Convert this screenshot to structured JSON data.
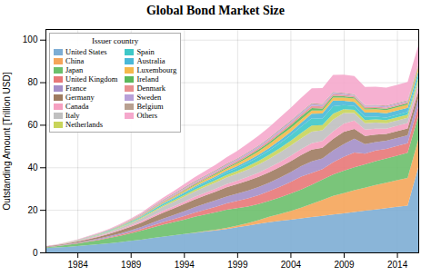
{
  "chart_data": {
    "type": "area",
    "stacked": true,
    "title": "Global Bond Market Size",
    "ylabel": "Outstanding Amount [Trillion USD]",
    "legend_title": "Issuer country",
    "legend": "upper left",
    "grid": true,
    "x": [
      1981,
      1982,
      1983,
      1984,
      1985,
      1986,
      1987,
      1988,
      1989,
      1990,
      1991,
      1992,
      1993,
      1994,
      1995,
      1996,
      1997,
      1998,
      1999,
      2000,
      2001,
      2002,
      2003,
      2004,
      2005,
      2006,
      2007,
      2008,
      2009,
      2010,
      2011,
      2012,
      2013,
      2014,
      2015,
      2016
    ],
    "xlim": [
      1981,
      2016
    ],
    "xticks": [
      1984,
      1989,
      1994,
      1999,
      2004,
      2009,
      2014
    ],
    "ylim": [
      0,
      105
    ],
    "yticks": [
      0,
      20,
      40,
      60,
      80,
      100
    ],
    "series": [
      {
        "name": "United States",
        "color": "#7dadd4",
        "values": [
          2.0,
          2.3,
          2.6,
          3.0,
          3.4,
          3.8,
          4.3,
          4.8,
          5.4,
          6.0,
          6.7,
          7.4,
          8.0,
          8.6,
          9.2,
          9.8,
          10.4,
          11.0,
          11.8,
          12.6,
          13.4,
          14.2,
          14.8,
          15.4,
          16.0,
          16.6,
          17.2,
          17.8,
          18.4,
          19.0,
          19.6,
          20.2,
          20.8,
          21.4,
          22.0,
          40.0
        ]
      },
      {
        "name": "China",
        "color": "#f5a55a",
        "values": [
          0.0,
          0.0,
          0.0,
          0.0,
          0.0,
          0.0,
          0.0,
          0.0,
          0.0,
          0.0,
          0.0,
          0.0,
          0.0,
          0.0,
          0.1,
          0.2,
          0.3,
          0.5,
          0.8,
          1.2,
          1.8,
          2.5,
          3.2,
          4.0,
          5.0,
          6.2,
          7.5,
          8.8,
          9.5,
          10.2,
          10.8,
          11.5,
          12.0,
          12.5,
          13.0,
          13.0
        ]
      },
      {
        "name": "Japan",
        "color": "#6bbf6b",
        "values": [
          0.4,
          0.6,
          0.9,
          1.2,
          1.6,
          2.0,
          2.5,
          3.0,
          3.6,
          4.2,
          4.9,
          5.6,
          6.2,
          6.8,
          7.4,
          7.8,
          8.2,
          8.6,
          8.2,
          7.8,
          7.5,
          7.5,
          7.8,
          8.2,
          8.6,
          9.0,
          9.5,
          10.0,
          10.5,
          10.8,
          11.0,
          11.2,
          11.4,
          11.6,
          11.8,
          11.0
        ]
      },
      {
        "name": "United Kingdom",
        "color": "#e87878",
        "values": [
          0.1,
          0.1,
          0.1,
          0.2,
          0.2,
          0.3,
          0.4,
          0.5,
          0.6,
          0.8,
          1.0,
          1.2,
          1.4,
          1.7,
          2.0,
          2.3,
          2.6,
          3.0,
          3.4,
          3.8,
          4.2,
          4.6,
          5.0,
          5.5,
          6.0,
          5.5,
          5.0,
          5.8,
          6.5,
          7.0,
          5.0,
          5.0,
          4.5,
          4.5,
          4.5,
          4.5
        ]
      },
      {
        "name": "France",
        "color": "#a48fc8",
        "values": [
          0.1,
          0.1,
          0.2,
          0.2,
          0.3,
          0.4,
          0.5,
          0.6,
          0.8,
          1.0,
          1.3,
          1.6,
          1.9,
          2.2,
          2.5,
          2.8,
          3.0,
          3.2,
          3.4,
          3.6,
          3.8,
          4.0,
          4.3,
          4.6,
          5.0,
          5.5,
          5.0,
          5.5,
          6.0,
          6.5,
          4.5,
          4.0,
          3.8,
          3.8,
          3.8,
          3.8
        ]
      },
      {
        "name": "Germany",
        "color": "#9e7b60",
        "values": [
          0.2,
          0.3,
          0.4,
          0.5,
          0.7,
          0.9,
          1.1,
          1.4,
          1.7,
          2.0,
          2.4,
          2.8,
          3.1,
          3.4,
          3.7,
          3.9,
          4.1,
          4.3,
          4.5,
          4.7,
          4.8,
          4.9,
          5.0,
          5.1,
          5.2,
          5.5,
          5.0,
          5.5,
          5.8,
          4.5,
          3.8,
          3.5,
          3.2,
          3.2,
          3.2,
          3.2
        ]
      },
      {
        "name": "Canada",
        "color": "#f5a0c0",
        "values": [
          0.1,
          0.1,
          0.2,
          0.2,
          0.3,
          0.3,
          0.4,
          0.5,
          0.6,
          0.7,
          0.8,
          0.9,
          1.0,
          1.1,
          1.2,
          1.3,
          1.4,
          1.5,
          1.6,
          1.8,
          2.0,
          2.2,
          2.4,
          2.6,
          2.8,
          3.0,
          3.2,
          3.5,
          3.8,
          4.0,
          3.0,
          2.8,
          2.5,
          2.5,
          2.5,
          2.5
        ]
      },
      {
        "name": "Italy",
        "color": "#c0c0c0",
        "values": [
          0.1,
          0.1,
          0.2,
          0.3,
          0.4,
          0.5,
          0.6,
          0.8,
          1.0,
          1.3,
          1.6,
          1.9,
          2.1,
          2.3,
          2.5,
          2.7,
          2.9,
          3.1,
          3.3,
          3.5,
          3.8,
          4.1,
          4.4,
          4.7,
          5.0,
          5.5,
          5.0,
          5.5,
          5.0,
          3.5,
          3.0,
          2.8,
          2.5,
          2.5,
          2.5,
          2.5
        ]
      },
      {
        "name": "Netherlands",
        "color": "#c8d45a",
        "values": [
          0.0,
          0.0,
          0.1,
          0.1,
          0.1,
          0.2,
          0.2,
          0.3,
          0.3,
          0.4,
          0.5,
          0.6,
          0.7,
          0.8,
          0.9,
          1.0,
          1.1,
          1.2,
          1.3,
          1.5,
          1.7,
          1.9,
          2.1,
          2.3,
          2.5,
          2.8,
          2.5,
          2.8,
          1.8,
          1.5,
          1.5,
          1.5,
          1.5,
          1.5,
          1.5,
          1.5
        ]
      },
      {
        "name": "Spain",
        "color": "#3ec8c8",
        "values": [
          0.0,
          0.0,
          0.0,
          0.1,
          0.1,
          0.1,
          0.2,
          0.2,
          0.3,
          0.4,
          0.5,
          0.6,
          0.7,
          0.8,
          0.9,
          1.0,
          1.1,
          1.2,
          1.4,
          1.6,
          1.8,
          2.0,
          2.3,
          2.6,
          3.0,
          3.5,
          3.0,
          3.5,
          2.0,
          1.8,
          1.5,
          1.3,
          1.2,
          1.2,
          1.2,
          1.2
        ]
      },
      {
        "name": "Australia",
        "color": "#4ab8d8",
        "values": [
          0.0,
          0.0,
          0.0,
          0.0,
          0.1,
          0.1,
          0.1,
          0.1,
          0.2,
          0.2,
          0.3,
          0.3,
          0.4,
          0.5,
          0.5,
          0.6,
          0.7,
          0.8,
          0.9,
          1.0,
          1.1,
          1.2,
          1.4,
          1.6,
          1.8,
          2.1,
          2.4,
          2.7,
          2.0,
          2.0,
          2.0,
          2.0,
          2.0,
          2.0,
          2.0,
          2.0
        ]
      },
      {
        "name": "Luxembourg",
        "color": "#f5b84a",
        "values": [
          0.0,
          0.0,
          0.0,
          0.0,
          0.0,
          0.1,
          0.1,
          0.1,
          0.2,
          0.2,
          0.3,
          0.4,
          0.5,
          0.6,
          0.7,
          0.8,
          0.9,
          1.0,
          1.2,
          1.4,
          1.6,
          1.8,
          2.0,
          1.8,
          1.6,
          1.5,
          1.4,
          1.4,
          1.5,
          1.5,
          1.5,
          1.5,
          1.5,
          1.5,
          1.5,
          1.5
        ]
      },
      {
        "name": "Ireland",
        "color": "#5ab85a",
        "values": [
          0.0,
          0.0,
          0.0,
          0.0,
          0.0,
          0.0,
          0.1,
          0.1,
          0.1,
          0.1,
          0.2,
          0.2,
          0.3,
          0.3,
          0.4,
          0.4,
          0.5,
          0.5,
          0.6,
          0.7,
          0.8,
          0.9,
          1.0,
          1.2,
          1.4,
          1.2,
          1.0,
          0.8,
          0.6,
          0.6,
          0.6,
          0.6,
          0.6,
          0.6,
          0.6,
          0.6
        ]
      },
      {
        "name": "Denmark",
        "color": "#e89090",
        "values": [
          0.0,
          0.0,
          0.0,
          0.1,
          0.1,
          0.1,
          0.1,
          0.2,
          0.2,
          0.3,
          0.3,
          0.4,
          0.4,
          0.5,
          0.5,
          0.6,
          0.6,
          0.7,
          0.7,
          0.8,
          0.8,
          0.9,
          0.9,
          1.0,
          1.0,
          1.0,
          0.9,
          0.8,
          0.7,
          0.6,
          0.6,
          0.6,
          0.6,
          0.6,
          0.6,
          0.6
        ]
      },
      {
        "name": "Sweden",
        "color": "#b8a0d8",
        "values": [
          0.0,
          0.0,
          0.0,
          0.0,
          0.1,
          0.1,
          0.1,
          0.1,
          0.2,
          0.2,
          0.3,
          0.3,
          0.4,
          0.4,
          0.5,
          0.5,
          0.5,
          0.6,
          0.6,
          0.7,
          0.7,
          0.7,
          0.8,
          0.8,
          0.8,
          0.8,
          0.7,
          0.6,
          0.5,
          0.5,
          0.5,
          0.5,
          0.5,
          0.5,
          0.5,
          0.5
        ]
      },
      {
        "name": "Belgium",
        "color": "#b8a090",
        "values": [
          0.0,
          0.0,
          0.0,
          0.0,
          0.1,
          0.1,
          0.1,
          0.2,
          0.2,
          0.3,
          0.3,
          0.4,
          0.4,
          0.5,
          0.5,
          0.5,
          0.5,
          0.5,
          0.5,
          0.5,
          0.5,
          0.5,
          0.5,
          0.5,
          0.5,
          0.5,
          0.5,
          0.4,
          0.4,
          0.4,
          0.4,
          0.4,
          0.4,
          0.4,
          0.4,
          0.4
        ]
      },
      {
        "name": "Others",
        "color": "#f5a8cc",
        "values": [
          0.0,
          0.1,
          0.1,
          0.2,
          0.2,
          0.3,
          0.3,
          0.4,
          0.5,
          0.6,
          0.8,
          1.0,
          1.2,
          1.5,
          1.8,
          2.1,
          2.5,
          3.0,
          3.5,
          4.0,
          4.5,
          5.0,
          5.5,
          6.0,
          6.5,
          7.0,
          7.5,
          8.0,
          8.5,
          8.5,
          8.5,
          8.5,
          8.5,
          8.5,
          8.5,
          8.5
        ]
      }
    ]
  }
}
